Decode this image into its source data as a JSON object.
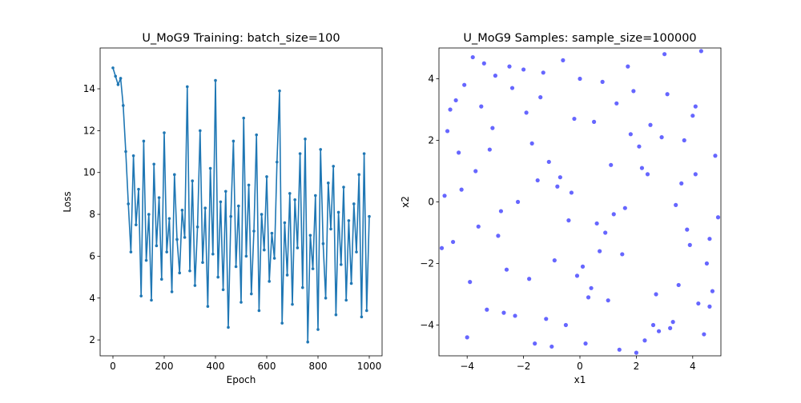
{
  "chart_data": [
    {
      "type": "line",
      "title": "U_MoG9 Training: batch_size=100",
      "xlabel": "Epoch",
      "ylabel": "Loss",
      "color": "#1f77b4",
      "x": [
        0,
        10,
        20,
        30,
        40,
        50,
        60,
        70,
        80,
        90,
        100,
        110,
        120,
        130,
        140,
        150,
        160,
        170,
        180,
        190,
        200,
        210,
        220,
        230,
        240,
        250,
        260,
        270,
        280,
        290,
        300,
        310,
        320,
        330,
        340,
        350,
        360,
        370,
        380,
        390,
        400,
        410,
        420,
        430,
        440,
        450,
        460,
        470,
        480,
        490,
        500,
        510,
        520,
        530,
        540,
        550,
        560,
        570,
        580,
        590,
        600,
        610,
        620,
        630,
        640,
        650,
        660,
        670,
        680,
        690,
        700,
        710,
        720,
        730,
        740,
        750,
        760,
        770,
        780,
        790,
        800,
        810,
        820,
        830,
        840,
        850,
        860,
        870,
        880,
        890,
        900,
        910,
        920,
        930,
        940,
        950,
        960,
        970,
        980,
        990,
        1000
      ],
      "values": [
        15.0,
        14.6,
        14.2,
        14.5,
        13.2,
        11.0,
        8.5,
        6.2,
        10.8,
        7.5,
        9.2,
        4.1,
        11.5,
        5.8,
        8.0,
        3.9,
        10.4,
        6.5,
        8.8,
        4.9,
        11.9,
        6.2,
        7.8,
        4.3,
        9.9,
        6.8,
        5.2,
        8.2,
        6.9,
        14.1,
        5.3,
        9.6,
        4.6,
        7.4,
        12.0,
        5.7,
        8.3,
        3.6,
        10.2,
        6.1,
        14.4,
        5.0,
        8.6,
        4.4,
        9.1,
        2.6,
        7.9,
        11.5,
        5.5,
        8.4,
        3.8,
        12.6,
        6.0,
        9.4,
        4.2,
        7.2,
        11.8,
        3.4,
        8.0,
        6.3,
        9.8,
        4.8,
        7.1,
        5.9,
        10.5,
        13.9,
        2.8,
        7.6,
        5.1,
        9.0,
        3.7,
        8.7,
        6.4,
        10.9,
        4.5,
        11.6,
        1.9,
        7.0,
        5.4,
        8.9,
        2.5,
        11.1,
        6.6,
        4.0,
        9.5,
        7.3,
        10.3,
        3.2,
        8.1,
        5.6,
        9.3,
        3.9,
        7.7,
        4.7,
        8.5,
        6.2,
        9.9,
        3.1,
        10.9,
        3.4,
        7.9
      ],
      "xlim": [
        -50,
        1050
      ],
      "ylim": [
        1.24,
        15.95
      ],
      "xticks": [
        0,
        200,
        400,
        600,
        800,
        1000
      ],
      "yticks": [
        2,
        4,
        6,
        8,
        10,
        12,
        14
      ]
    },
    {
      "type": "scatter",
      "title": "U_MoG9 Samples: sample_size=100000",
      "xlabel": "x1",
      "ylabel": "x2",
      "color": "#0000ff",
      "x": [
        -4.7,
        3.2,
        -1.5,
        0.8,
        4.6,
        -3.3,
        2.1,
        -0.4,
        1.7,
        -2.6,
        4.1,
        -4.2,
        0.2,
        3.8,
        -1.9,
        2.7,
        -3.8,
        1.1,
        -0.9,
        4.4,
        -2.2,
        0.5,
        3.5,
        -4.9,
        1.9,
        -1.2,
        2.4,
        -3.0,
        4.8,
        -0.1,
        -2.8,
        3.0,
        0.9,
        -4.4,
        1.4,
        -1.7,
        4.2,
        -3.6,
        2.9,
        -0.6,
        -4.0,
        3.6,
        -2.4,
        0.3,
        1.6,
        -3.1,
        4.5,
        -1.0,
        2.2,
        -4.6,
        0.7,
        -2.0,
        3.3,
        -0.3,
        4.0,
        -3.9,
        1.2,
        -1.4,
        2.6,
        -4.3,
        0.0,
        3.9,
        -2.7,
        1.8,
        -0.7,
        4.7,
        -3.4,
        2.3,
        -1.1,
        0.6,
        -4.8,
        3.1,
        -1.8,
        4.3,
        -2.9,
        1.0,
        -0.2,
        2.8,
        -3.7,
        4.9,
        -1.3,
        0.4,
        3.7,
        -2.3,
        1.5,
        -4.1,
        2.0,
        -0.8,
        4.6,
        -3.2,
        0.1,
        -2.5,
        3.4,
        -0.5,
        1.3,
        -4.5,
        2.5,
        -1.6,
        4.1,
        -3.5
      ],
      "values": [
        2.3,
        -4.1,
        0.7,
        3.9,
        -1.2,
        -3.5,
        1.8,
        -0.6,
        4.4,
        -2.2,
        3.1,
        0.4,
        -4.6,
        -0.9,
        2.9,
        -3.0,
        4.7,
        1.2,
        -1.9,
        -4.3,
        0.0,
        2.6,
        -2.7,
        -1.5,
        3.6,
        -3.8,
        0.9,
        4.1,
        1.5,
        -2.4,
        -0.3,
        4.8,
        -1.0,
        3.3,
        -4.8,
        1.9,
        -3.3,
        -0.8,
        2.1,
        4.6,
        -4.4,
        0.6,
        3.7,
        -3.1,
        -0.2,
        2.4,
        -2.0,
        -4.7,
        1.1,
        3.0,
        -1.6,
        4.3,
        -3.9,
        0.3,
        2.8,
        -2.6,
        -0.4,
        3.4,
        -4.0,
        1.6,
        4.0,
        -1.4,
        -3.6,
        2.2,
        0.8,
        -2.9,
        4.5,
        -4.5,
        1.3,
        -0.7,
        0.2,
        3.5,
        -2.5,
        4.9,
        -1.1,
        -3.2,
        2.7,
        -4.2,
        1.0,
        -0.5,
        4.2,
        -2.8,
        2.0,
        -3.7,
        -1.7,
        3.8,
        -4.9,
        0.5,
        -3.4,
        1.7,
        -2.1,
        4.4,
        -0.1,
        -4.0,
        3.2,
        -1.3,
        2.5,
        -4.6,
        0.9,
        3.1
      ],
      "xlim": [
        -5,
        5
      ],
      "ylim": [
        -5,
        5
      ],
      "xticks": [
        {
          "value": -4,
          "label": "−4"
        },
        {
          "value": -2,
          "label": "−2"
        },
        0,
        2,
        4
      ],
      "yticks": [
        {
          "value": -4,
          "label": "−4"
        },
        {
          "value": -2,
          "label": "−2"
        },
        0,
        2,
        4
      ]
    }
  ]
}
